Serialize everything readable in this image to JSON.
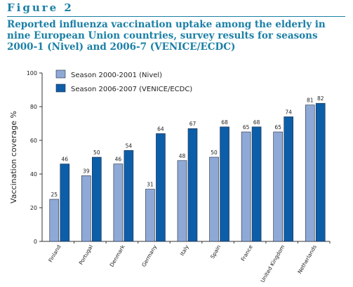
{
  "figure": {
    "label": "Figure 2",
    "title": "Reported influenza vaccination uptake among the elderly in nine European Union countries, survey results for seasons 2000-1 (Nivel) and 2006-7 (VENICE/ECDC)"
  },
  "colors": {
    "title": "#1a7fa6",
    "series_light": "#8fa9d6",
    "series_dark": "#0d5ea8",
    "bar_stroke": "#1f2a44"
  },
  "chart_data": {
    "type": "bar",
    "title": "",
    "xlabel": "",
    "ylabel": "Vaccination coverage %",
    "ylim": [
      0,
      100
    ],
    "yticks": [
      0,
      20,
      40,
      60,
      80,
      100
    ],
    "grid": false,
    "legend_position": "top-left",
    "categories": [
      "Finland",
      "Portugal",
      "Denmark",
      "Germany",
      "Italy",
      "Spain",
      "France",
      "United Kingdom",
      "Netherlands"
    ],
    "series": [
      {
        "name": "Season 2000-2001 (Nivel)",
        "values": [
          25,
          39,
          46,
          31,
          48,
          50,
          65,
          65,
          81
        ]
      },
      {
        "name": "Season 2006-2007 (VENICE/ECDC)",
        "values": [
          46,
          50,
          54,
          64,
          67,
          68,
          68,
          74,
          82
        ]
      }
    ]
  }
}
